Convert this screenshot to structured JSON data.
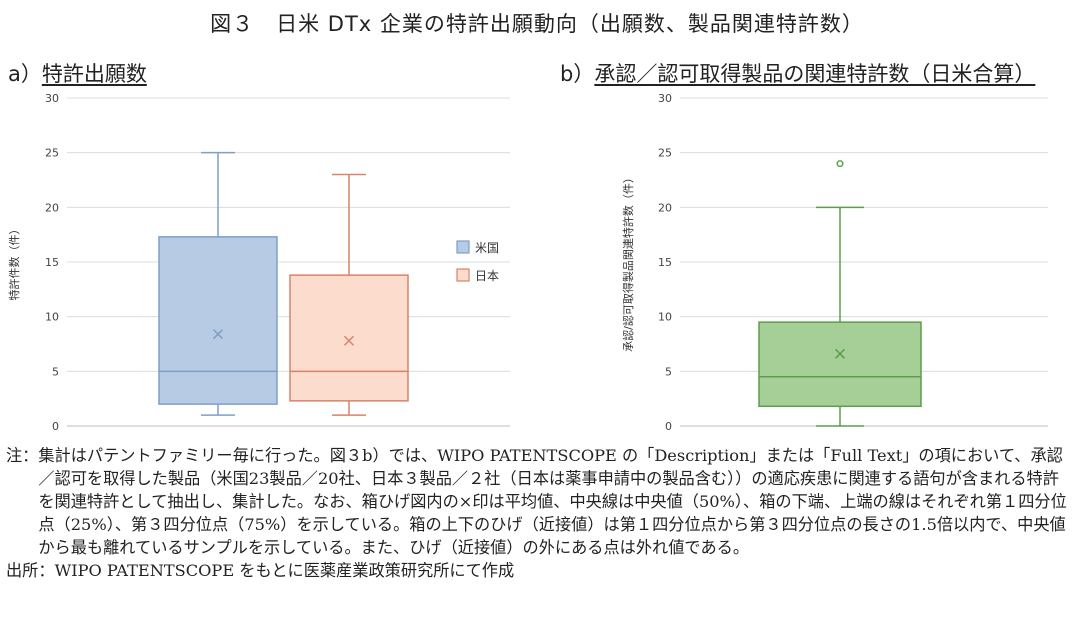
{
  "figure_title": "図３　日米 DTx 企業の特許出願動向（出願数、製品関連特許数）",
  "panel_a_prefix": "a）",
  "panel_a_title": "特許出願数",
  "panel_b_prefix": "b）",
  "panel_b_title": "承認／認可取得製品の関連特許数（日米合算）",
  "notes_label": "注：",
  "notes_text": "集計はパテントファミリー毎に行った。図３b）では、WIPO PATENTSCOPE の「Description」または「Full Text」の項において、承認／認可を取得した製品（米国23製品／20社、日本３製品／２社（日本は薬事申請中の製品含む））の適応疾患に関連する語句が含まれる特許を関連特許として抽出し、集計した。なお、箱ひげ図内の×印は平均値、中央線は中央値（50%）、箱の下端、上端の線はそれぞれ第１四分位点（25%）、第３四分位点（75%）を示している。箱の上下のひげ（近接値）は第１四分位点から第３四分位点の長さの1.5倍以内で、中央値から最も離れているサンプルを示している。また、ひげ（近接値）の外にある点は外れ値である。",
  "source_label": "出所：",
  "source_text": "WIPO PATENTSCOPE をもとに医薬産業政策研究所にて作成",
  "chart_data": [
    {
      "type": "box",
      "ylabel": "特許件数（件）",
      "ylim": [
        0,
        30
      ],
      "yticks": [
        0,
        5,
        10,
        15,
        20,
        25,
        30
      ],
      "grid": true,
      "legend": "right",
      "series": [
        {
          "name": "米国",
          "min": 1,
          "q1": 2,
          "median": 5,
          "q3": 17.3,
          "max": 25,
          "mean": 8.4,
          "outliers": [],
          "color": "#7f9fc8",
          "fill": "#b8cbe4"
        },
        {
          "name": "日本",
          "min": 1,
          "q1": 2.3,
          "median": 5,
          "q3": 13.8,
          "max": 23,
          "mean": 7.8,
          "outliers": [],
          "color": "#d9836a",
          "fill": "#fbdccd"
        }
      ]
    },
    {
      "type": "box",
      "ylabel": "承認/認可取得製品関連特許数（件）",
      "ylim": [
        0,
        30
      ],
      "yticks": [
        0,
        5,
        10,
        15,
        20,
        25,
        30
      ],
      "grid": true,
      "series": [
        {
          "min": 0,
          "q1": 1.8,
          "median": 4.5,
          "q3": 9.5,
          "max": 20,
          "mean": 6.6,
          "outliers": [
            24
          ],
          "color": "#5a9e4b",
          "fill": "#a6cf97"
        }
      ]
    }
  ]
}
